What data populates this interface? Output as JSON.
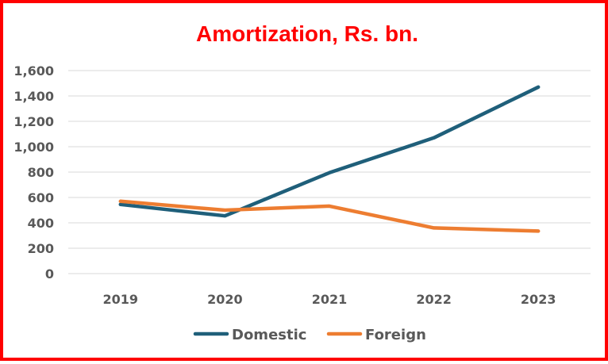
{
  "chart_data": {
    "type": "line",
    "title": "Amortization, Rs. bn.",
    "xlabel": "",
    "ylabel": "",
    "categories": [
      "2019",
      "2020",
      "2021",
      "2022",
      "2023"
    ],
    "ylim": [
      0,
      1600
    ],
    "yticks": [
      0,
      200,
      400,
      600,
      800,
      1000,
      1200,
      1400,
      1600
    ],
    "ytick_labels": [
      "0",
      "200",
      "400",
      "600",
      "800",
      "1,000",
      "1,200",
      "1,400",
      "1,600"
    ],
    "grid": true,
    "legend_position": "bottom",
    "series": [
      {
        "name": "Domestic",
        "color": "#1f5f7a",
        "values": [
          545,
          455,
          795,
          1070,
          1470
        ]
      },
      {
        "name": "Foreign",
        "color": "#ed7d31",
        "values": [
          570,
          500,
          532,
          360,
          335
        ]
      }
    ]
  },
  "frame": {
    "border_color": "#ff0000",
    "title_color": "#ff0000"
  }
}
